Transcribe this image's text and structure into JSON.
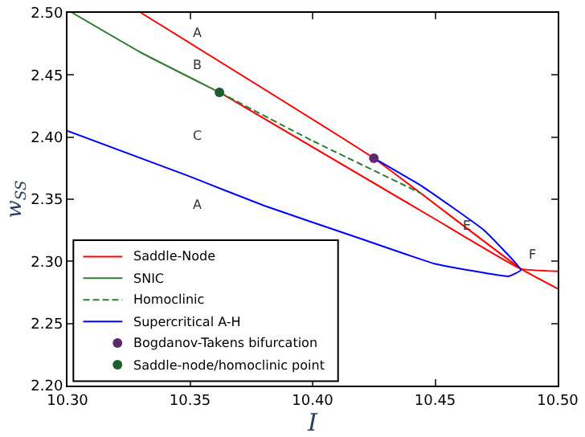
{
  "chart_data": {
    "type": "line",
    "xlabel": "I",
    "ylabel": "w$_{SS}$",
    "xlim": [
      10.3,
      10.5
    ],
    "ylim": [
      2.2,
      2.5
    ],
    "xticks": [
      {
        "value": 10.3,
        "label": "10.30"
      },
      {
        "value": 10.35,
        "label": "10.35"
      },
      {
        "value": 10.4,
        "label": "10.40"
      },
      {
        "value": 10.45,
        "label": "10.45"
      },
      {
        "value": 10.5,
        "label": "10.50"
      }
    ],
    "yticks": [
      {
        "value": 2.2,
        "label": "2.20"
      },
      {
        "value": 2.25,
        "label": "2.25"
      },
      {
        "value": 2.3,
        "label": "2.30"
      },
      {
        "value": 2.35,
        "label": "2.35"
      },
      {
        "value": 2.4,
        "label": "2.40"
      },
      {
        "value": 2.45,
        "label": "2.45"
      },
      {
        "value": 2.5,
        "label": "2.50"
      }
    ],
    "legend": "bottom left",
    "series": [
      {
        "name": "Saddle-Node",
        "color": "#ff0000",
        "x": [
          10.33,
          10.425,
          10.485,
          10.5
        ],
        "values": [
          2.5,
          2.383,
          2.294,
          2.278
        ],
        "marker": "none",
        "line_style": "solid"
      },
      {
        "color": "#ff0000",
        "x": [
          10.362,
          10.45,
          10.485,
          10.5
        ],
        "values": [
          2.436,
          2.334,
          2.294,
          2.292
        ],
        "marker": "none",
        "line_style": "solid"
      },
      {
        "name": "SNIC",
        "color": "#2e7d32",
        "x": [
          10.302,
          10.33,
          10.362
        ],
        "values": [
          2.5,
          2.468,
          2.436
        ],
        "marker": "none",
        "line_style": "solid"
      },
      {
        "name": "Homoclinic",
        "color": "#2e7d32",
        "x": [
          10.362,
          10.4,
          10.444
        ],
        "values": [
          2.436,
          2.397,
          2.355
        ],
        "marker": "none",
        "line_style": "dashed"
      },
      {
        "name": "Supercritical A-H",
        "color": "#0000ff",
        "x": [
          10.425,
          10.445,
          10.47,
          10.485,
          10.48,
          10.45,
          10.42,
          10.38,
          10.349,
          10.3
        ],
        "values": [
          2.383,
          2.36,
          2.325,
          2.293,
          2.288,
          2.298,
          2.318,
          2.345,
          2.369,
          2.405
        ],
        "marker": "none",
        "line_style": "solid"
      },
      {
        "name": "Bogdanov-Takens bifurcation",
        "type": "scatter",
        "color": "#5e2a6e",
        "x": [
          10.425
        ],
        "values": [
          2.383
        ],
        "marker": "circle"
      },
      {
        "name": "Saddle-node/homoclinic point",
        "type": "scatter",
        "color": "#1e5e2e",
        "x": [
          10.362
        ],
        "values": [
          2.436
        ],
        "marker": "circle"
      }
    ],
    "annotations": [
      "A",
      "B",
      "C",
      "A",
      "E",
      "F"
    ]
  }
}
